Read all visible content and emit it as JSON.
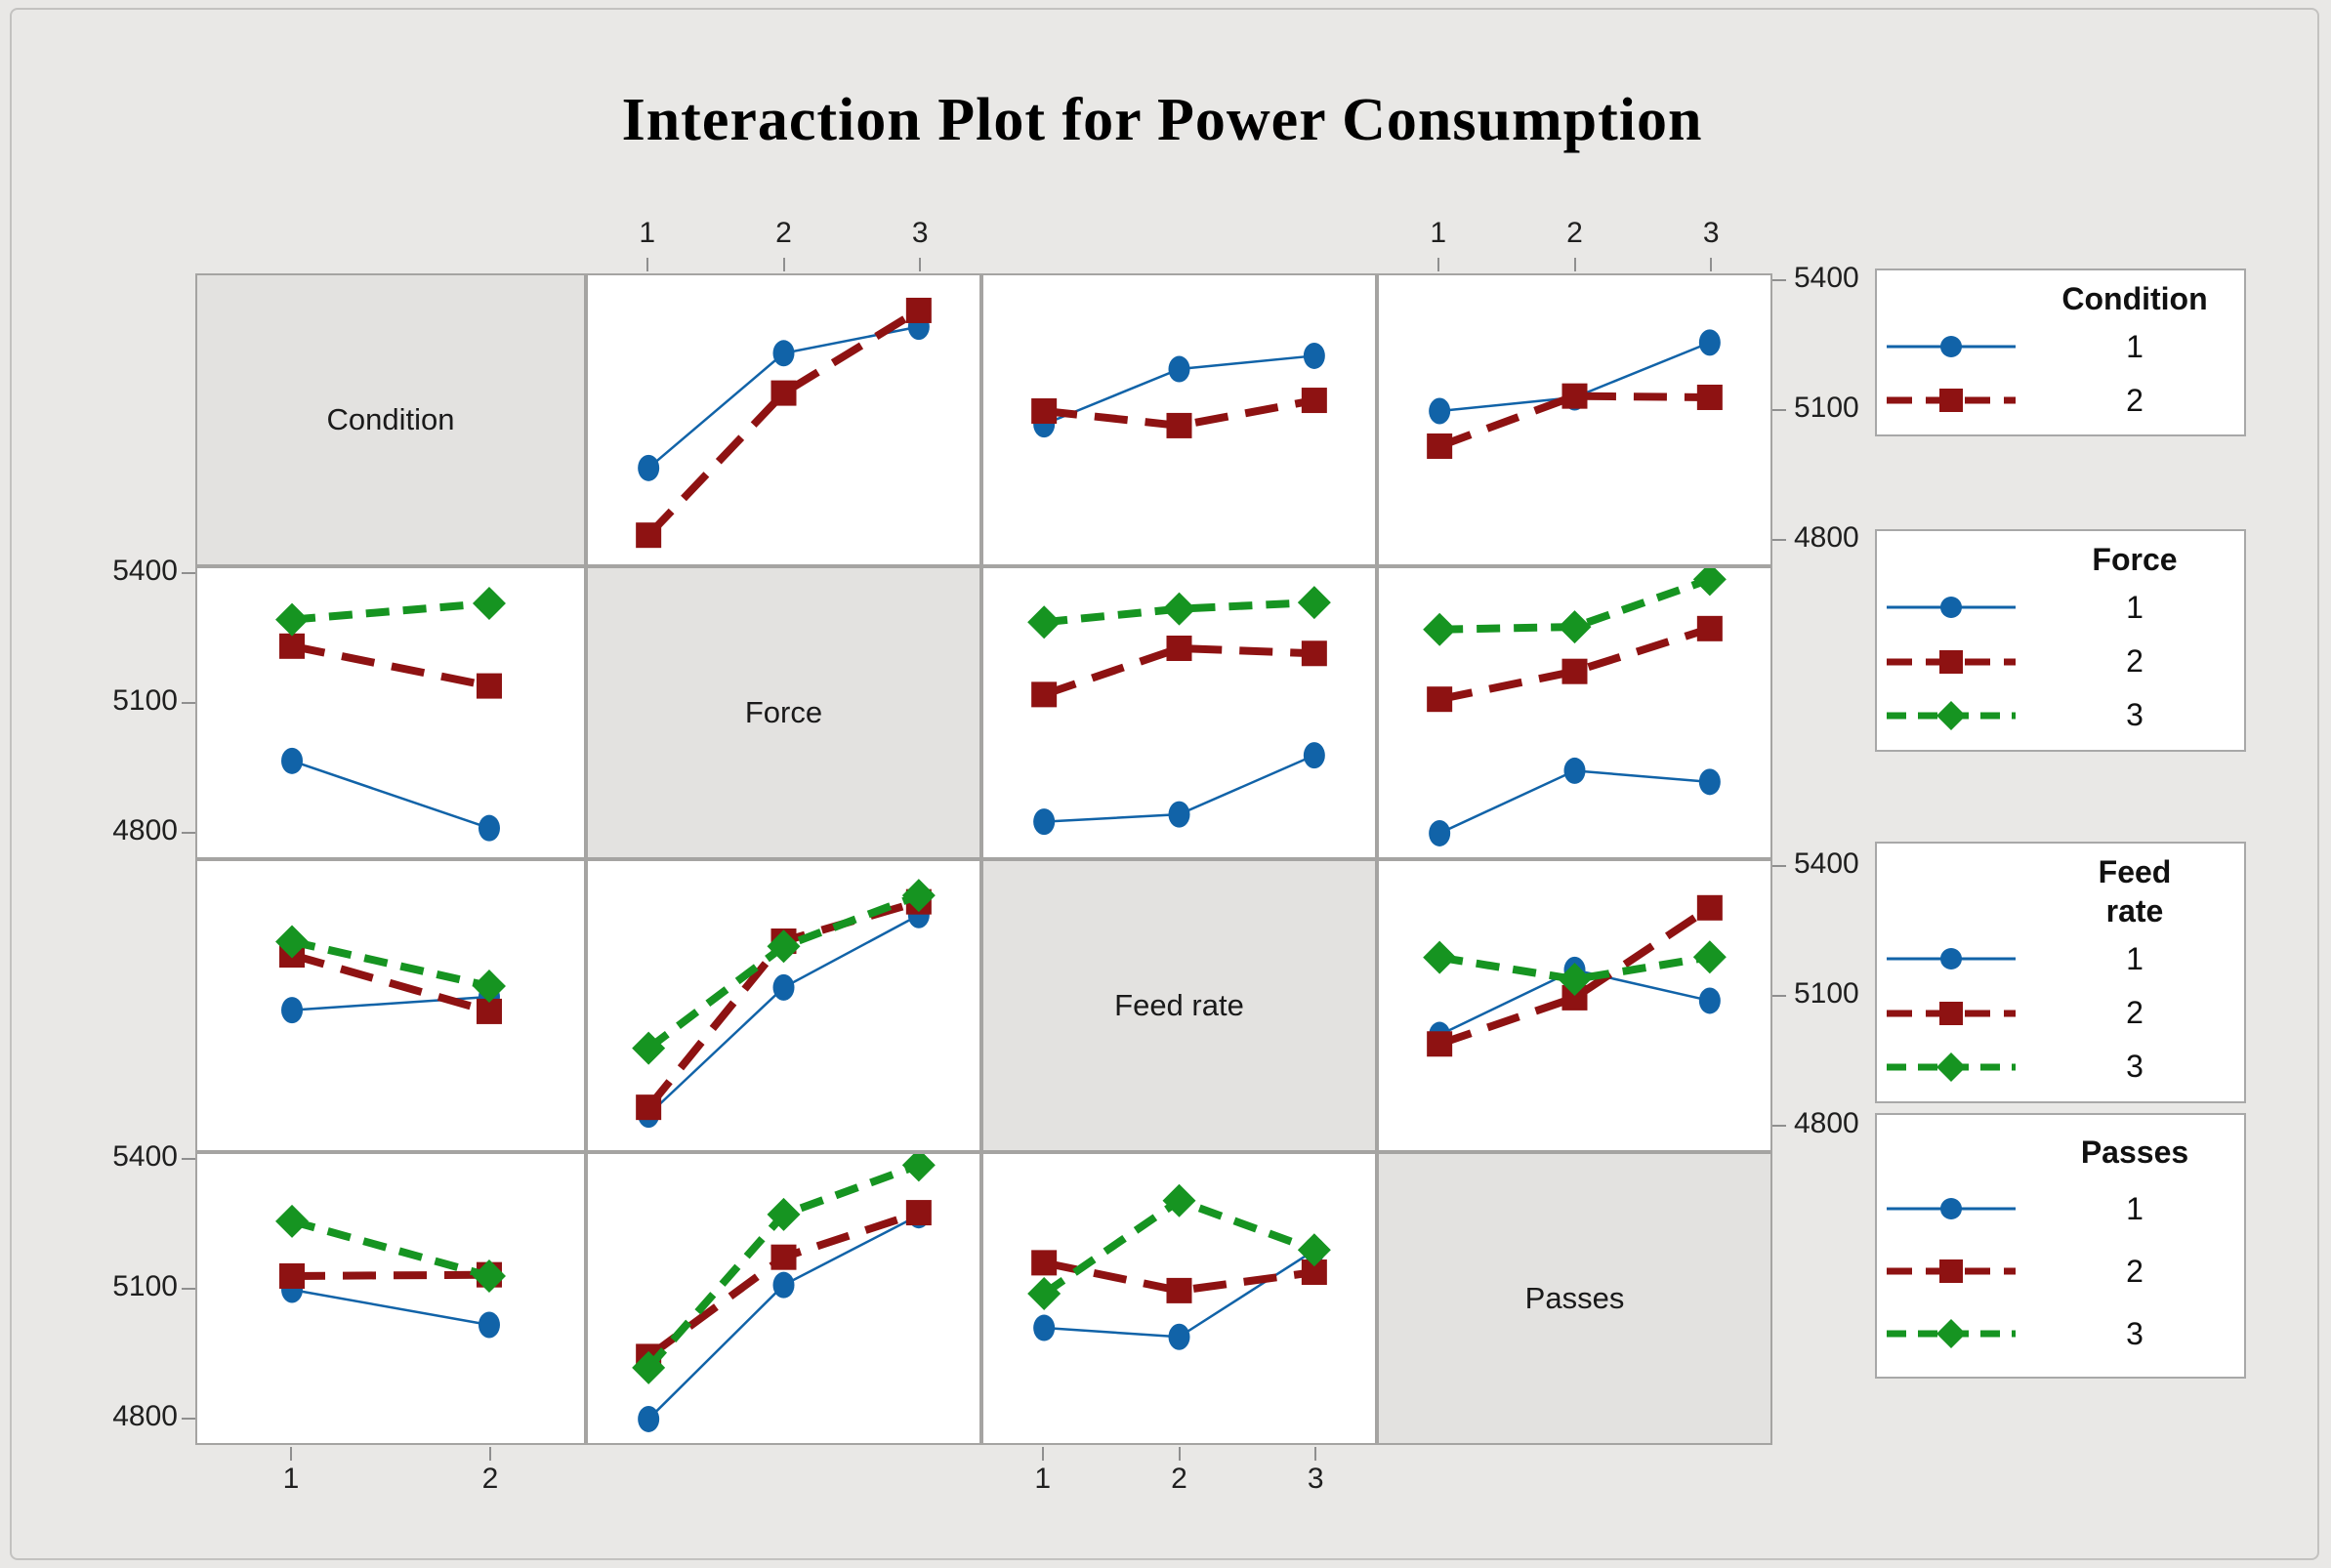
{
  "title": "Interaction Plot for Power Consumption",
  "colors": {
    "level1_blue": "#1163a8",
    "level2_red": "#8e1212",
    "level3_green": "#169421",
    "panel_border": "#a5a4a2",
    "background": "#e9e8e6",
    "diagonal_fill": "#e3e2e0",
    "tick": "#8f8f8f",
    "text": "#1f1f1f"
  },
  "axes": {
    "ytick_labels": [
      "5400",
      "5100",
      "4800"
    ],
    "ytick_values": [
      5400,
      5100,
      4800
    ],
    "top_axis_label_sets": [
      {
        "col": 1,
        "labels": [
          "1",
          "2",
          "3"
        ]
      },
      {
        "col": 3,
        "labels": [
          "1",
          "2",
          "3"
        ]
      }
    ],
    "bottom_axis_label_sets": [
      {
        "col": 0,
        "labels": [
          "1",
          "2"
        ]
      },
      {
        "col": 2,
        "labels": [
          "1",
          "2",
          "3"
        ]
      }
    ],
    "left_label_rows": [
      1,
      3
    ],
    "right_label_rows": [
      0,
      2
    ]
  },
  "legends": [
    {
      "title_lines": [
        "Condition"
      ],
      "items": [
        {
          "label": "1",
          "level": 1
        },
        {
          "label": "2",
          "level": 2
        }
      ]
    },
    {
      "title_lines": [
        "Force"
      ],
      "items": [
        {
          "label": "1",
          "level": 1
        },
        {
          "label": "2",
          "level": 2
        },
        {
          "label": "3",
          "level": 3
        }
      ]
    },
    {
      "title_lines": [
        "Feed",
        "rate"
      ],
      "items": [
        {
          "label": "1",
          "level": 1
        },
        {
          "label": "2",
          "level": 2
        },
        {
          "label": "3",
          "level": 3
        }
      ]
    },
    {
      "title_lines": [
        "Passes"
      ],
      "items": [
        {
          "label": "1",
          "level": 1
        },
        {
          "label": "2",
          "level": 2
        },
        {
          "label": "3",
          "level": 3
        }
      ]
    }
  ],
  "chart_data": {
    "type": "line",
    "subtype": "interaction-plot-matrix",
    "title": "Interaction Plot for Power Consumption",
    "response": "Power Consumption",
    "ylim": [
      4740,
      5415
    ],
    "yticks": [
      4800,
      5100,
      5400
    ],
    "grid": false,
    "factors": [
      {
        "name": "Condition",
        "levels": [
          "1",
          "2"
        ]
      },
      {
        "name": "Force",
        "levels": [
          "1",
          "2",
          "3"
        ]
      },
      {
        "name": "Feed rate",
        "levels": [
          "1",
          "2",
          "3"
        ]
      },
      {
        "name": "Passes",
        "levels": [
          "1",
          "2",
          "3"
        ]
      }
    ],
    "cells": [
      {
        "row_factor": "Condition",
        "col_factor": "Force",
        "series": [
          {
            "name": "Condition 1",
            "values": [
              4965,
              5233,
              5295
            ]
          },
          {
            "name": "Condition 2",
            "values": [
              4808,
              5140,
              5333
            ]
          }
        ]
      },
      {
        "row_factor": "Condition",
        "col_factor": "Feed rate",
        "series": [
          {
            "name": "Condition 1",
            "values": [
              5067,
              5196,
              5227
            ]
          },
          {
            "name": "Condition 2",
            "values": [
              5098,
              5064,
              5123
            ]
          }
        ]
      },
      {
        "row_factor": "Condition",
        "col_factor": "Passes",
        "series": [
          {
            "name": "Condition 1",
            "values": [
              5098,
              5130,
              5258
            ]
          },
          {
            "name": "Condition 2",
            "values": [
              5016,
              5133,
              5130
            ]
          }
        ]
      },
      {
        "row_factor": "Force",
        "col_factor": "Condition",
        "series": [
          {
            "name": "Force 1",
            "values": [
              4965,
              4808
            ]
          },
          {
            "name": "Force 2",
            "values": [
              5233,
              5140
            ]
          },
          {
            "name": "Force 3",
            "values": [
              5295,
              5333
            ]
          }
        ]
      },
      {
        "row_factor": "Force",
        "col_factor": "Feed rate",
        "series": [
          {
            "name": "Force 1",
            "values": [
              4823,
              4840,
              4978
            ]
          },
          {
            "name": "Force 2",
            "values": [
              5120,
              5228,
              5216
            ]
          },
          {
            "name": "Force 3",
            "values": [
              5289,
              5320,
              5335
            ]
          }
        ]
      },
      {
        "row_factor": "Force",
        "col_factor": "Passes",
        "series": [
          {
            "name": "Force 1",
            "values": [
              4796,
              4942,
              4916
            ]
          },
          {
            "name": "Force 2",
            "values": [
              5109,
              5174,
              5274
            ]
          },
          {
            "name": "Force 3",
            "values": [
              5272,
              5278,
              5389
            ]
          }
        ]
      },
      {
        "row_factor": "Feed rate",
        "col_factor": "Condition",
        "series": [
          {
            "name": "Feed rate 1",
            "values": [
              5067,
              5098
            ]
          },
          {
            "name": "Feed rate 2",
            "values": [
              5196,
              5064
            ]
          },
          {
            "name": "Feed rate 3",
            "values": [
              5227,
              5123
            ]
          }
        ]
      },
      {
        "row_factor": "Feed rate",
        "col_factor": "Force",
        "series": [
          {
            "name": "Feed rate 1",
            "values": [
              4823,
              5120,
              5289
            ]
          },
          {
            "name": "Feed rate 2",
            "values": [
              4840,
              5228,
              5320
            ]
          },
          {
            "name": "Feed rate 3",
            "values": [
              4978,
              5216,
              5335
            ]
          }
        ]
      },
      {
        "row_factor": "Feed rate",
        "col_factor": "Passes",
        "series": [
          {
            "name": "Feed rate 1",
            "values": [
              5009,
              5161,
              5089
            ]
          },
          {
            "name": "Feed rate 2",
            "values": [
              4988,
              5096,
              5306
            ]
          },
          {
            "name": "Feed rate 3",
            "values": [
              5190,
              5139,
              5191
            ]
          }
        ]
      },
      {
        "row_factor": "Passes",
        "col_factor": "Condition",
        "series": [
          {
            "name": "Passes 1",
            "values": [
              5098,
              5016
            ]
          },
          {
            "name": "Passes 2",
            "values": [
              5130,
              5133
            ]
          },
          {
            "name": "Passes 3",
            "values": [
              5258,
              5130
            ]
          }
        ]
      },
      {
        "row_factor": "Passes",
        "col_factor": "Force",
        "series": [
          {
            "name": "Passes 1",
            "values": [
              4796,
              5109,
              5272
            ]
          },
          {
            "name": "Passes 2",
            "values": [
              4942,
              5174,
              5278
            ]
          },
          {
            "name": "Passes 3",
            "values": [
              4916,
              5274,
              5389
            ]
          }
        ]
      },
      {
        "row_factor": "Passes",
        "col_factor": "Feed rate",
        "series": [
          {
            "name": "Passes 1",
            "values": [
              5009,
              4988,
              5190
            ]
          },
          {
            "name": "Passes 2",
            "values": [
              5161,
              5096,
              5139
            ]
          },
          {
            "name": "Passes 3",
            "values": [
              5089,
              5306,
              5191
            ]
          }
        ]
      }
    ]
  }
}
